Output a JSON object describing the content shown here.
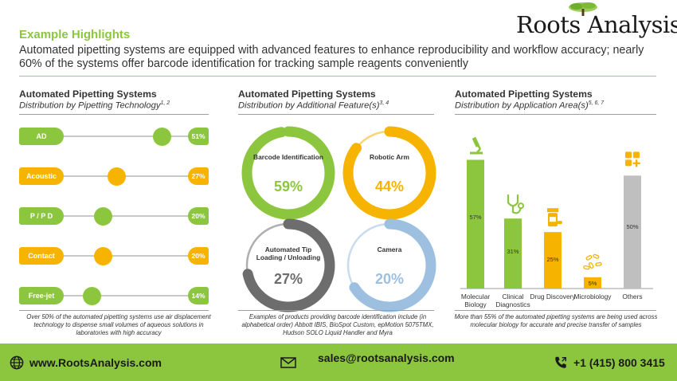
{
  "logo": {
    "text": "Roots Analysis",
    "tree_color": "#8cc63f"
  },
  "header": {
    "example_title": "Example Highlights",
    "headline": "Automated pipetting systems are equipped with advanced features to enhance reproducibility and workflow accuracy; nearly 60% of the systems offer barcode identification for tracking sample reagents conveniently"
  },
  "panels": {
    "technology": {
      "title": "Automated Pipetting Systems",
      "subtitle": "Distribution by Pipetting Technology",
      "refs": "1, 2",
      "footnote": "Over 50% of the automated pipetting systems use air displacement technology to dispense small volumes of aqueous solutions in laboratories with high accuracy"
    },
    "features": {
      "title": "Automated Pipetting Systems",
      "subtitle": "Distribution by Additional Feature(s)",
      "refs": "3, 4",
      "footnote": "Examples of products providing barcode identification include (in alphabetical order) Abbott IBIS, BioSpot Custom, epMotion 5075TMX, Hudson SOLO Liquid Handler and Myra"
    },
    "application": {
      "title": "Automated Pipetting Systems",
      "subtitle": "Distribution by Application Area(s)",
      "refs": "5, 6, 7",
      "footnote": "More than 55% of the automated pipetting systems are being used across molecular biology for accurate and precise transfer of samples"
    }
  },
  "chart_data": [
    {
      "type": "bar",
      "title": "Automated Pipetting Systems",
      "subtitle": "Distribution by Pipetting Technology",
      "categories": [
        "AD",
        "Acoustic",
        "P / P D",
        "Contact",
        "Free-jet"
      ],
      "values": [
        51,
        27,
        20,
        20,
        14
      ],
      "labels": [
        "51%",
        "27%",
        "20%",
        "20%",
        "14%"
      ],
      "colors": [
        "#8cc63f",
        "#f6b400",
        "#8cc63f",
        "#f6b400",
        "#8cc63f"
      ],
      "xlim": [
        0,
        100
      ]
    },
    {
      "type": "pie",
      "title": "Automated Pipetting Systems",
      "subtitle": "Distribution by Additional Feature(s)",
      "categories": [
        "Barcode Identification",
        "Robotic Arm",
        "Automated Tip Loading / Unloading",
        "Camera"
      ],
      "values": [
        59,
        44,
        27,
        20
      ],
      "labels": [
        "59%",
        "44%",
        "27%",
        "20%"
      ],
      "colors": [
        "#8cc63f",
        "#f6b400",
        "#6d6d6d",
        "#9dbfe0"
      ]
    },
    {
      "type": "bar",
      "title": "Automated Pipetting Systems",
      "subtitle": "Distribution by Application Area(s)",
      "categories": [
        "Molecular Biology",
        "Clinical Diagnostics",
        "Drug Discovery",
        "Microbiology",
        "Others"
      ],
      "values": [
        57,
        31,
        25,
        5,
        50
      ],
      "labels": [
        "57%",
        "31%",
        "25%",
        "5%",
        "50%"
      ],
      "colors": [
        "#8cc63f",
        "#8cc63f",
        "#f6b400",
        "#f6b400",
        "#bfbfbf"
      ],
      "ylim": [
        0,
        60
      ]
    }
  ],
  "icons": {
    "application": [
      "microscope-icon",
      "stethoscope-icon",
      "pill-bottle-icon",
      "bacteria-icon",
      "grid-plus-icon"
    ]
  },
  "footer": {
    "website": "www.RootsAnalysis.com",
    "email": "sales@rootsanalysis.com",
    "phone": "+1 (415) 800 3415",
    "background": "#8cc63f"
  }
}
